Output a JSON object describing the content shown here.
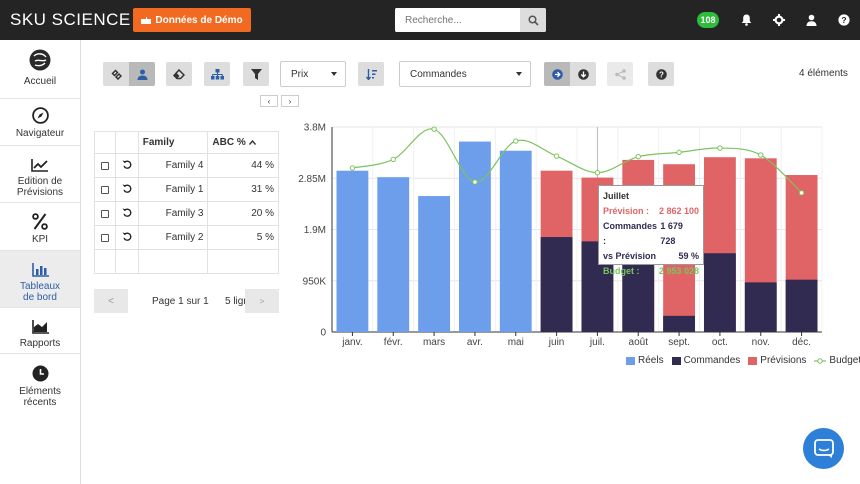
{
  "header": {
    "brand": "SKU SCIENCE",
    "demo_button": "Données de Démo",
    "search_placeholder": "Recherche...",
    "notification_count": "108"
  },
  "sidebar": {
    "items": [
      {
        "label": "Accueil"
      },
      {
        "label": "Navigateur"
      },
      {
        "label": "Edition de Prévisions"
      },
      {
        "label": "KPI"
      },
      {
        "label": "Tableaux de bord"
      },
      {
        "label": "Rapports"
      },
      {
        "label": "Eléments récents"
      }
    ],
    "active_index": 4
  },
  "toolbar": {
    "price_select": "Prix",
    "orders_select": "Commandes",
    "element_count": "4 éléments",
    "prev_label": "‹",
    "next_label": "›"
  },
  "table": {
    "headers": {
      "family": "Family",
      "abc": "ABC %"
    },
    "rows": [
      {
        "name": "Family 4",
        "abc": "44 %"
      },
      {
        "name": "Family 1",
        "abc": "31 %"
      },
      {
        "name": "Family 3",
        "abc": "20 %"
      },
      {
        "name": "Family 2",
        "abc": "5 %"
      }
    ]
  },
  "pager": {
    "prev": "<",
    "info": "Page 1 sur 1",
    "lines": "5 lignes",
    "next": ">"
  },
  "colors": {
    "reels": "#6d9eeb",
    "commandes": "#312b52",
    "previsions": "#e06466",
    "budget": "#7cc35f"
  },
  "chart_data": {
    "type": "bar",
    "categories": [
      "janv.",
      "févr.",
      "mars",
      "avr.",
      "mai",
      "juin",
      "juil.",
      "août",
      "sept.",
      "oct.",
      "nov.",
      "déc."
    ],
    "y_ticks": [
      "0",
      "950K",
      "1.9M",
      "2.85M",
      "3.8M"
    ],
    "ylim": [
      0,
      3800000
    ],
    "series": [
      {
        "name": "Réels",
        "values": [
          2990000,
          2870000,
          2520000,
          3530000,
          3360000,
          null,
          null,
          null,
          null,
          null,
          null,
          null
        ]
      },
      {
        "name": "Commandes",
        "values": [
          null,
          null,
          null,
          null,
          null,
          1760000,
          1679728,
          1610000,
          300000,
          1460000,
          920000,
          970000
        ]
      },
      {
        "name": "Prévisions",
        "values": [
          null,
          null,
          null,
          null,
          null,
          2990000,
          2862100,
          3190000,
          3110000,
          3240000,
          3220000,
          2910000
        ]
      },
      {
        "name": "Budget",
        "values": [
          3040000,
          3200000,
          3760000,
          2780000,
          3540000,
          3260000,
          2953028,
          3250000,
          3330000,
          3410000,
          3280000,
          2580000
        ]
      }
    ],
    "legend": [
      "Réels",
      "Commandes",
      "Prévisions",
      "Budget"
    ],
    "tooltip": {
      "title": "Juillet",
      "prevision_label": "Prévision :",
      "prevision_value": "2 862 100",
      "commandes_label": "Commandes :",
      "commandes_value": "1 679 728",
      "vs_label": "vs Prévision",
      "vs_value": "59 %",
      "budget_label": "Budget :",
      "budget_value": "2 953 028"
    }
  }
}
